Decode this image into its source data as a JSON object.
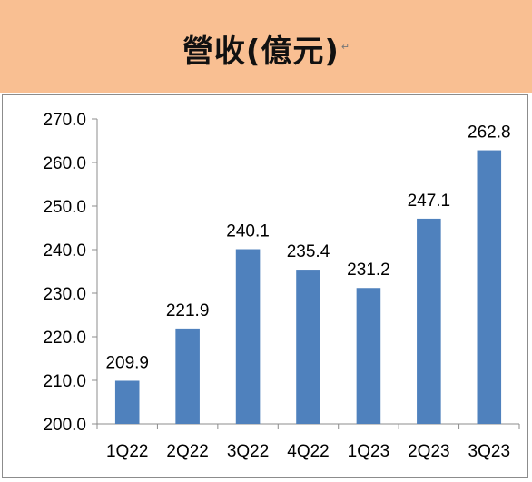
{
  "header": {
    "title": "營收(億元)",
    "title_mark": "↵",
    "background": "#f9bf92"
  },
  "chart_data": {
    "type": "bar",
    "title": "營收(億元)",
    "xlabel": "",
    "ylabel": "",
    "categories": [
      "1Q22",
      "2Q22",
      "3Q22",
      "4Q22",
      "1Q23",
      "2Q23",
      "3Q23"
    ],
    "values": [
      209.9,
      221.9,
      240.1,
      235.4,
      231.2,
      247.1,
      262.8
    ],
    "value_labels": [
      "209.9",
      "221.9",
      "240.1",
      "235.4",
      "231.2",
      "247.1",
      "262.8"
    ],
    "ylim": [
      200,
      270
    ],
    "yticks": [
      "200.0",
      "210.0",
      "220.0",
      "230.0",
      "240.0",
      "250.0",
      "260.0",
      "270.0"
    ],
    "grid": false,
    "legend": "none",
    "bar_color": "#4f81bd"
  }
}
